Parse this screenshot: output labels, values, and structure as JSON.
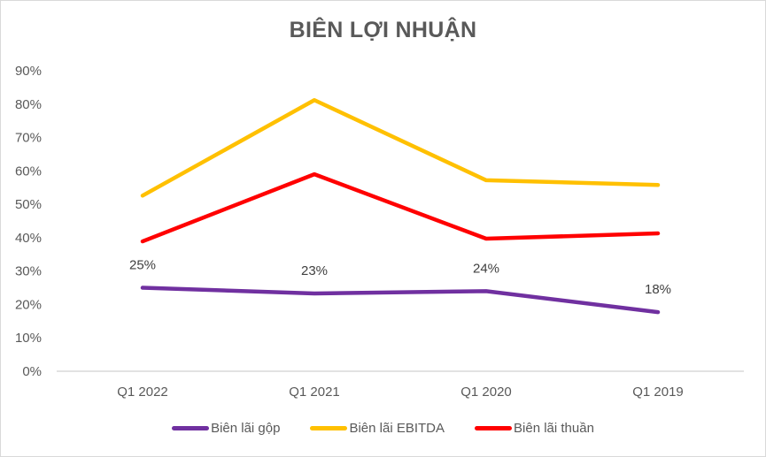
{
  "chart_data": {
    "type": "line",
    "title": "BIÊN LỢI NHUẬN",
    "xlabel": "",
    "ylabel": "",
    "categories": [
      "Q1 2022",
      "Q1 2021",
      "Q1 2020",
      "Q1 2019"
    ],
    "ylim": [
      0,
      90
    ],
    "yticks": [
      0,
      10,
      20,
      30,
      40,
      50,
      60,
      70,
      80,
      90
    ],
    "ytick_labels": [
      "0%",
      "10%",
      "20%",
      "30%",
      "40%",
      "50%",
      "60%",
      "70%",
      "80%",
      "90%"
    ],
    "grid": false,
    "legend_position": "bottom",
    "series": [
      {
        "name": "Biên lãi gộp",
        "color": "#7030a0",
        "values": [
          25,
          23.3,
          24,
          17.7
        ],
        "data_labels": [
          "25%",
          "23%",
          "24%",
          "18%"
        ]
      },
      {
        "name": "Biên lãi EBITDA",
        "color": "#ffc000",
        "values": [
          52.6,
          81.2,
          57.2,
          55.8
        ]
      },
      {
        "name": "Biên lãi thuần",
        "color": "#ff0000",
        "values": [
          38.9,
          59,
          39.7,
          41.3
        ]
      }
    ]
  }
}
